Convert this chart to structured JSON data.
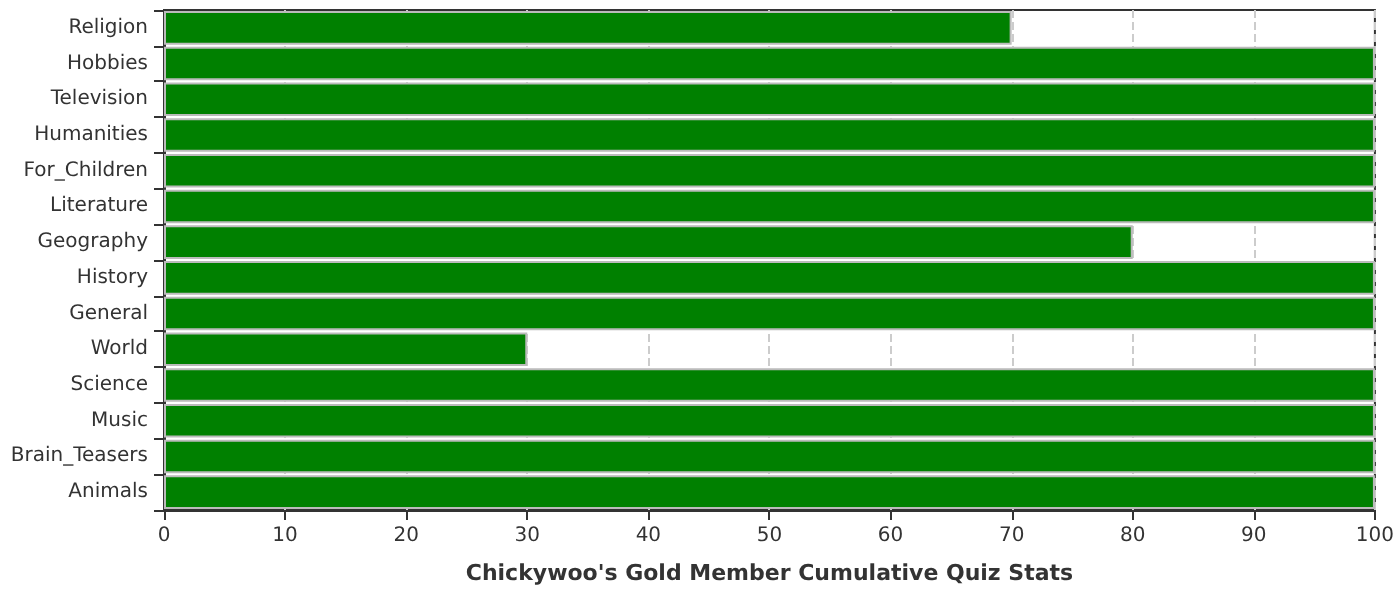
{
  "chart_data": {
    "type": "bar",
    "orientation": "horizontal",
    "xlabel": "Chickywoo's Gold Member Cumulative Quiz Stats",
    "categories": [
      "Religion",
      "Hobbies",
      "Television",
      "Humanities",
      "For_Children",
      "Literature",
      "Geography",
      "History",
      "General",
      "World",
      "Science",
      "Music",
      "Brain_Teasers",
      "Animals"
    ],
    "values": [
      70,
      100,
      100,
      100,
      100,
      100,
      80,
      100,
      100,
      30,
      100,
      100,
      100,
      100
    ],
    "color": "#008000",
    "xlim": [
      0,
      100
    ],
    "xticks": [
      0,
      10,
      20,
      30,
      40,
      50,
      60,
      70,
      80,
      90,
      100
    ],
    "grid": "x"
  }
}
